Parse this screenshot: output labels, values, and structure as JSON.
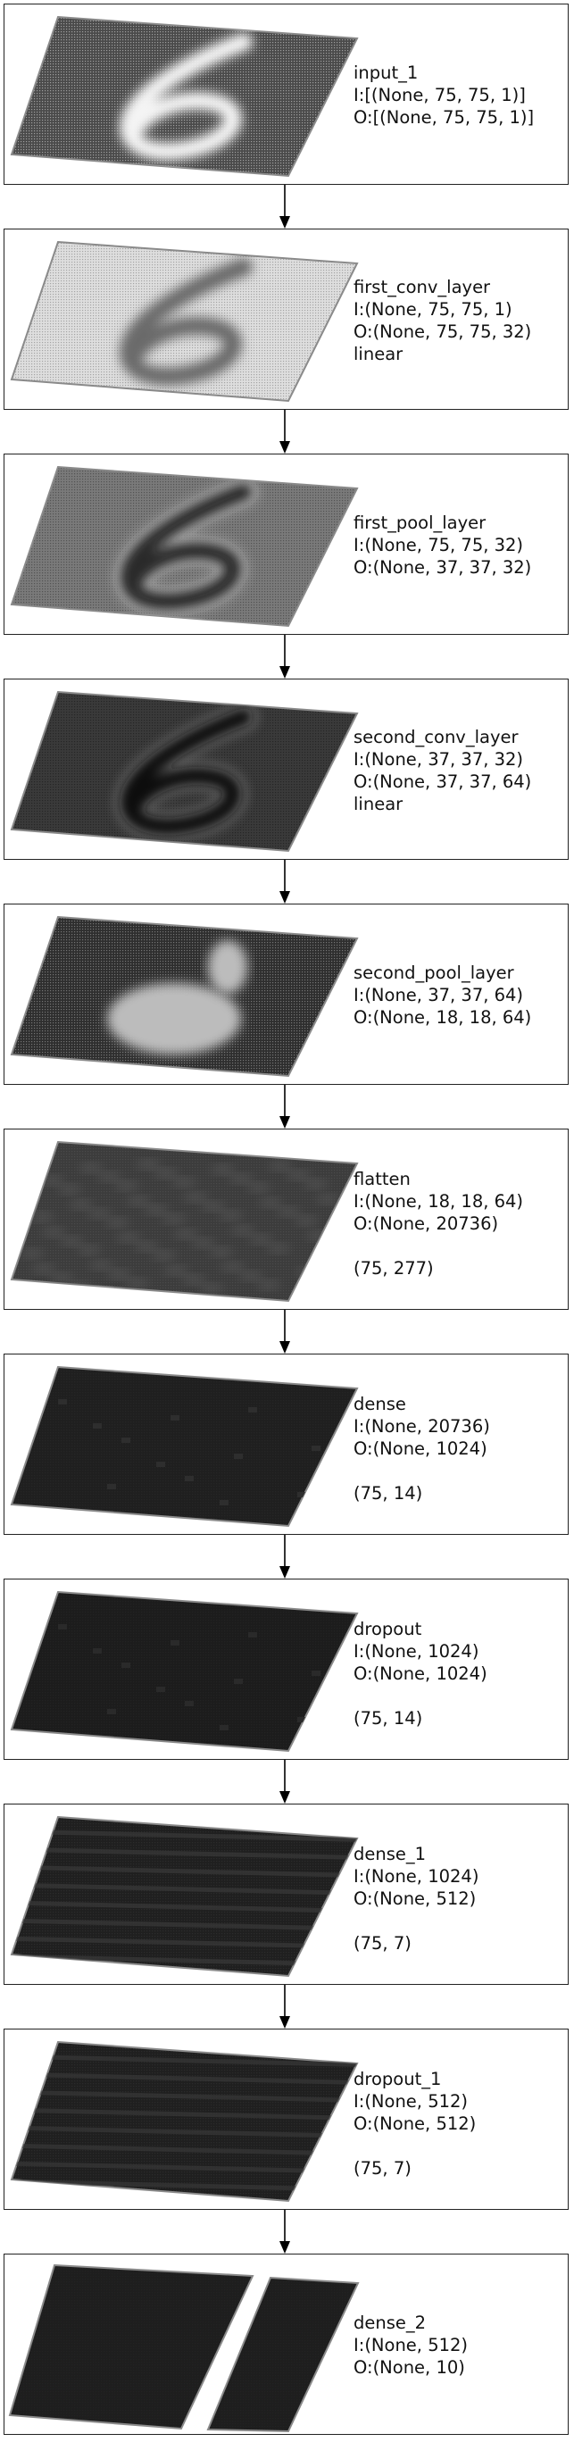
{
  "layers": [
    {
      "name": "input_1",
      "input": "I:[(None, 75, 75, 1)]",
      "output": "O:[(None, 75, 75, 1)]",
      "activation": "",
      "shape": "",
      "render": {
        "style": "digit",
        "bg": "#4a4a4a",
        "fg": "#f4f4f4"
      }
    },
    {
      "name": "first_conv_layer",
      "input": "I:(None, 75, 75, 1)",
      "output": "O:(None, 75, 75, 32)",
      "activation": "linear",
      "shape": "",
      "render": {
        "style": "digit",
        "bg": "#dedede",
        "fg": "#6a6a6a"
      }
    },
    {
      "name": "first_pool_layer",
      "input": "I:(None, 75, 75, 32)",
      "output": "O:(None, 37, 37, 32)",
      "activation": "",
      "shape": "",
      "render": {
        "style": "digit",
        "bg": "#7a7a7a",
        "fg": "#2a2a2a",
        "fg2": "#d8d8d8"
      }
    },
    {
      "name": "second_conv_layer",
      "input": "I:(None, 37, 37, 32)",
      "output": "O:(None, 37, 37, 64)",
      "activation": "linear",
      "shape": "",
      "render": {
        "style": "digit",
        "bg": "#3a3a3a",
        "fg": "#101010",
        "fg2": "#8a8a8a"
      }
    },
    {
      "name": "second_pool_layer",
      "input": "I:(None, 37, 37, 64)",
      "output": "O:(None, 18, 18, 64)",
      "activation": "",
      "shape": "",
      "render": {
        "style": "blob",
        "bg": "#2e2e2e",
        "fg": "#bcbcbc"
      }
    },
    {
      "name": "flatten",
      "input": "I:(None, 18, 18, 64)",
      "output": "O:(None, 20736)",
      "activation": "",
      "shape": "(75, 277)",
      "render": {
        "style": "noise",
        "bg": "#3c3c3c",
        "fg": "#5a5a5a"
      }
    },
    {
      "name": "dense",
      "input": "I:(None, 20736)",
      "output": "O:(None, 1024)",
      "activation": "",
      "shape": "(75, 14)",
      "render": {
        "style": "dark",
        "bg": "#1f1f1f",
        "fg": "#2e2e2e"
      }
    },
    {
      "name": "dropout",
      "input": "I:(None, 1024)",
      "output": "O:(None, 1024)",
      "activation": "",
      "shape": "(75, 14)",
      "render": {
        "style": "dark",
        "bg": "#1c1c1c",
        "fg": "#2a2a2a"
      }
    },
    {
      "name": "dense_1",
      "input": "I:(None, 1024)",
      "output": "O:(None, 512)",
      "activation": "",
      "shape": "(75, 7)",
      "render": {
        "style": "stripes",
        "bg": "#1f1f1f",
        "fg": "#3a3a3a"
      }
    },
    {
      "name": "dropout_1",
      "input": "I:(None, 512)",
      "output": "O:(None, 512)",
      "activation": "",
      "shape": "(75, 7)",
      "render": {
        "style": "stripes",
        "bg": "#1f1f1f",
        "fg": "#383838"
      }
    },
    {
      "name": "dense_2",
      "input": "I:(None, 512)",
      "output": "O:(None, 10)",
      "activation": "",
      "shape": "",
      "render": {
        "style": "split",
        "bg": "#1e1e1e",
        "fg": "#262626"
      }
    }
  ],
  "colors": {
    "border": "#222222",
    "arrow": "#000000",
    "plane_edge": "#8a8a8a"
  }
}
